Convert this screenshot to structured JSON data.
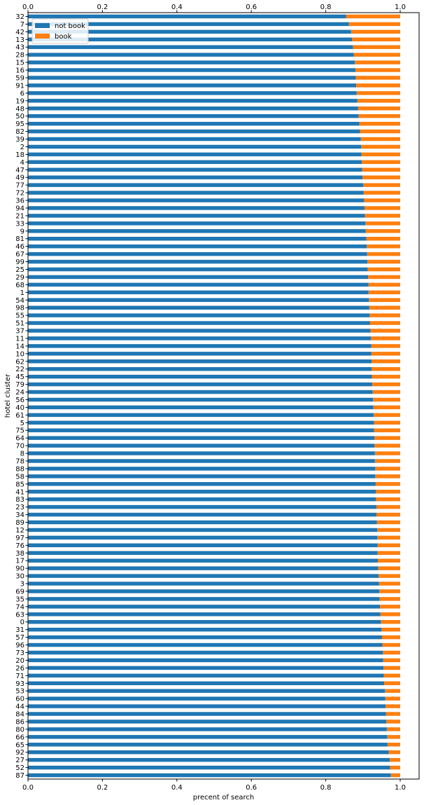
{
  "chart_data": {
    "type": "bar",
    "orientation": "horizontal",
    "stacked": true,
    "xlabel": "precent of search",
    "ylabel": "hotel cluster",
    "xlim": [
      0,
      1
    ],
    "xticks": [
      "0.0",
      "0.2",
      "0.4",
      "0.6",
      "0.8",
      "1.0"
    ],
    "grid": false,
    "legend_position": "top-left",
    "categories": [
      "32",
      "7",
      "42",
      "13",
      "43",
      "28",
      "15",
      "16",
      "59",
      "91",
      "6",
      "19",
      "48",
      "50",
      "95",
      "82",
      "39",
      "2",
      "18",
      "4",
      "47",
      "49",
      "77",
      "72",
      "36",
      "94",
      "21",
      "33",
      "9",
      "81",
      "46",
      "67",
      "99",
      "25",
      "29",
      "68",
      "1",
      "54",
      "98",
      "55",
      "51",
      "37",
      "11",
      "14",
      "10",
      "62",
      "22",
      "45",
      "79",
      "24",
      "56",
      "40",
      "61",
      "5",
      "75",
      "64",
      "70",
      "8",
      "78",
      "88",
      "58",
      "85",
      "41",
      "83",
      "23",
      "34",
      "89",
      "12",
      "97",
      "76",
      "38",
      "17",
      "90",
      "30",
      "3",
      "69",
      "35",
      "74",
      "63",
      "0",
      "31",
      "57",
      "96",
      "73",
      "20",
      "26",
      "71",
      "93",
      "53",
      "60",
      "44",
      "84",
      "86",
      "80",
      "66",
      "65",
      "92",
      "27",
      "52",
      "87"
    ],
    "series": [
      {
        "name": "not book",
        "color": "#1f77b4",
        "values": [
          0.855,
          0.862,
          0.868,
          0.871,
          0.873,
          0.875,
          0.878,
          0.88,
          0.881,
          0.882,
          0.883,
          0.885,
          0.887,
          0.888,
          0.89,
          0.892,
          0.894,
          0.895,
          0.896,
          0.897,
          0.898,
          0.899,
          0.901,
          0.902,
          0.903,
          0.904,
          0.905,
          0.906,
          0.907,
          0.909,
          0.91,
          0.911,
          0.912,
          0.913,
          0.914,
          0.915,
          0.915,
          0.916,
          0.917,
          0.918,
          0.919,
          0.92,
          0.921,
          0.922,
          0.922,
          0.923,
          0.923,
          0.924,
          0.925,
          0.926,
          0.927,
          0.928,
          0.929,
          0.93,
          0.93,
          0.931,
          0.931,
          0.932,
          0.932,
          0.933,
          0.933,
          0.934,
          0.935,
          0.935,
          0.936,
          0.936,
          0.937,
          0.938,
          0.938,
          0.939,
          0.939,
          0.94,
          0.941,
          0.942,
          0.943,
          0.944,
          0.945,
          0.946,
          0.947,
          0.948,
          0.95,
          0.951,
          0.952,
          0.953,
          0.954,
          0.955,
          0.956,
          0.957,
          0.959,
          0.96,
          0.961,
          0.962,
          0.963,
          0.964,
          0.965,
          0.966,
          0.969,
          0.972,
          0.973,
          0.975
        ]
      },
      {
        "name": "book",
        "color": "#ff7f0e",
        "values": [
          0.145,
          0.138,
          0.132,
          0.129,
          0.127,
          0.125,
          0.122,
          0.12,
          0.119,
          0.118,
          0.117,
          0.115,
          0.113,
          0.112,
          0.11,
          0.108,
          0.106,
          0.105,
          0.104,
          0.103,
          0.102,
          0.101,
          0.099,
          0.098,
          0.097,
          0.096,
          0.095,
          0.094,
          0.093,
          0.091,
          0.09,
          0.089,
          0.088,
          0.087,
          0.086,
          0.085,
          0.085,
          0.084,
          0.083,
          0.082,
          0.081,
          0.08,
          0.079,
          0.078,
          0.078,
          0.077,
          0.077,
          0.076,
          0.075,
          0.074,
          0.073,
          0.072,
          0.071,
          0.07,
          0.07,
          0.069,
          0.069,
          0.068,
          0.068,
          0.067,
          0.067,
          0.066,
          0.065,
          0.065,
          0.064,
          0.064,
          0.063,
          0.062,
          0.062,
          0.061,
          0.061,
          0.06,
          0.059,
          0.058,
          0.057,
          0.056,
          0.055,
          0.054,
          0.053,
          0.052,
          0.05,
          0.049,
          0.048,
          0.047,
          0.046,
          0.045,
          0.044,
          0.043,
          0.041,
          0.04,
          0.039,
          0.038,
          0.037,
          0.036,
          0.035,
          0.034,
          0.031,
          0.028,
          0.027,
          0.025
        ]
      }
    ]
  }
}
